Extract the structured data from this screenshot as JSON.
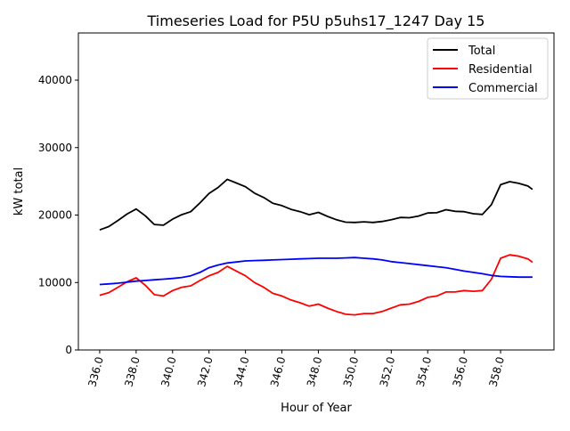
{
  "chart_data": {
    "type": "line",
    "title": "Timeseries Load for P5U p5uhs17_1247  Day 15",
    "xlabel": "Hour of Year",
    "ylabel": "kW total",
    "xlim": [
      334.83,
      360.93
    ],
    "ylim": [
      0,
      47000
    ],
    "xticks": [
      "336.0",
      "338.0",
      "340.0",
      "342.0",
      "344.0",
      "346.0",
      "348.0",
      "350.0",
      "352.0",
      "354.0",
      "356.0",
      "358.0"
    ],
    "xtick_values": [
      336,
      338,
      340,
      342,
      344,
      346,
      348,
      350,
      352,
      354,
      356,
      358
    ],
    "yticks": [
      "0",
      "10000",
      "20000",
      "30000",
      "40000"
    ],
    "ytick_values": [
      0,
      10000,
      20000,
      30000,
      40000
    ],
    "grid": false,
    "legend_position": "top-right",
    "x": [
      336,
      336.5,
      337,
      337.5,
      338,
      338.5,
      339,
      339.5,
      340,
      340.5,
      341,
      341.5,
      342,
      342.5,
      343,
      343.5,
      344,
      344.5,
      345,
      345.5,
      346,
      346.5,
      347,
      347.5,
      348,
      348.5,
      349,
      349.5,
      350,
      350.5,
      351,
      351.5,
      352,
      352.5,
      353,
      353.5,
      354,
      354.5,
      355,
      355.5,
      356,
      356.5,
      357,
      357.5,
      358,
      358.5,
      359,
      359.5,
      359.75
    ],
    "series": [
      {
        "name": "Total",
        "color": "#000000",
        "values": [
          17800,
          18300,
          19200,
          20150,
          20900,
          19900,
          18600,
          18500,
          19400,
          20050,
          20500,
          21800,
          23200,
          24100,
          25300,
          24750,
          24200,
          23250,
          22600,
          21750,
          21400,
          20850,
          20500,
          20050,
          20400,
          19800,
          19300,
          18950,
          18900,
          19000,
          18900,
          19050,
          19300,
          19650,
          19600,
          19850,
          20300,
          20350,
          20800,
          20550,
          20500,
          20200,
          20100,
          21550,
          24500,
          24950,
          24700,
          24300,
          23800
        ]
      },
      {
        "name": "Residential",
        "color": "#ff0000",
        "values": [
          8100,
          8500,
          9300,
          10100,
          10700,
          9600,
          8200,
          8000,
          8800,
          9300,
          9500,
          10300,
          11000,
          11500,
          12400,
          11700,
          11000,
          10000,
          9300,
          8400,
          8000,
          7400,
          7000,
          6500,
          6800,
          6200,
          5700,
          5300,
          5200,
          5400,
          5400,
          5700,
          6200,
          6700,
          6800,
          7200,
          7800,
          8000,
          8600,
          8600,
          8800,
          8700,
          8800,
          10500,
          13600,
          14100,
          13900,
          13500,
          13000
        ]
      },
      {
        "name": "Commercial",
        "color": "#0000ff",
        "values": [
          9700,
          9800,
          9900,
          10050,
          10200,
          10300,
          10400,
          10500,
          10600,
          10750,
          11000,
          11500,
          12200,
          12600,
          12900,
          13050,
          13200,
          13250,
          13300,
          13350,
          13400,
          13450,
          13500,
          13550,
          13600,
          13600,
          13600,
          13650,
          13700,
          13600,
          13500,
          13350,
          13100,
          12950,
          12800,
          12650,
          12500,
          12350,
          12200,
          11950,
          11700,
          11500,
          11300,
          11050,
          10900,
          10850,
          10800,
          10800,
          10800
        ]
      }
    ]
  }
}
